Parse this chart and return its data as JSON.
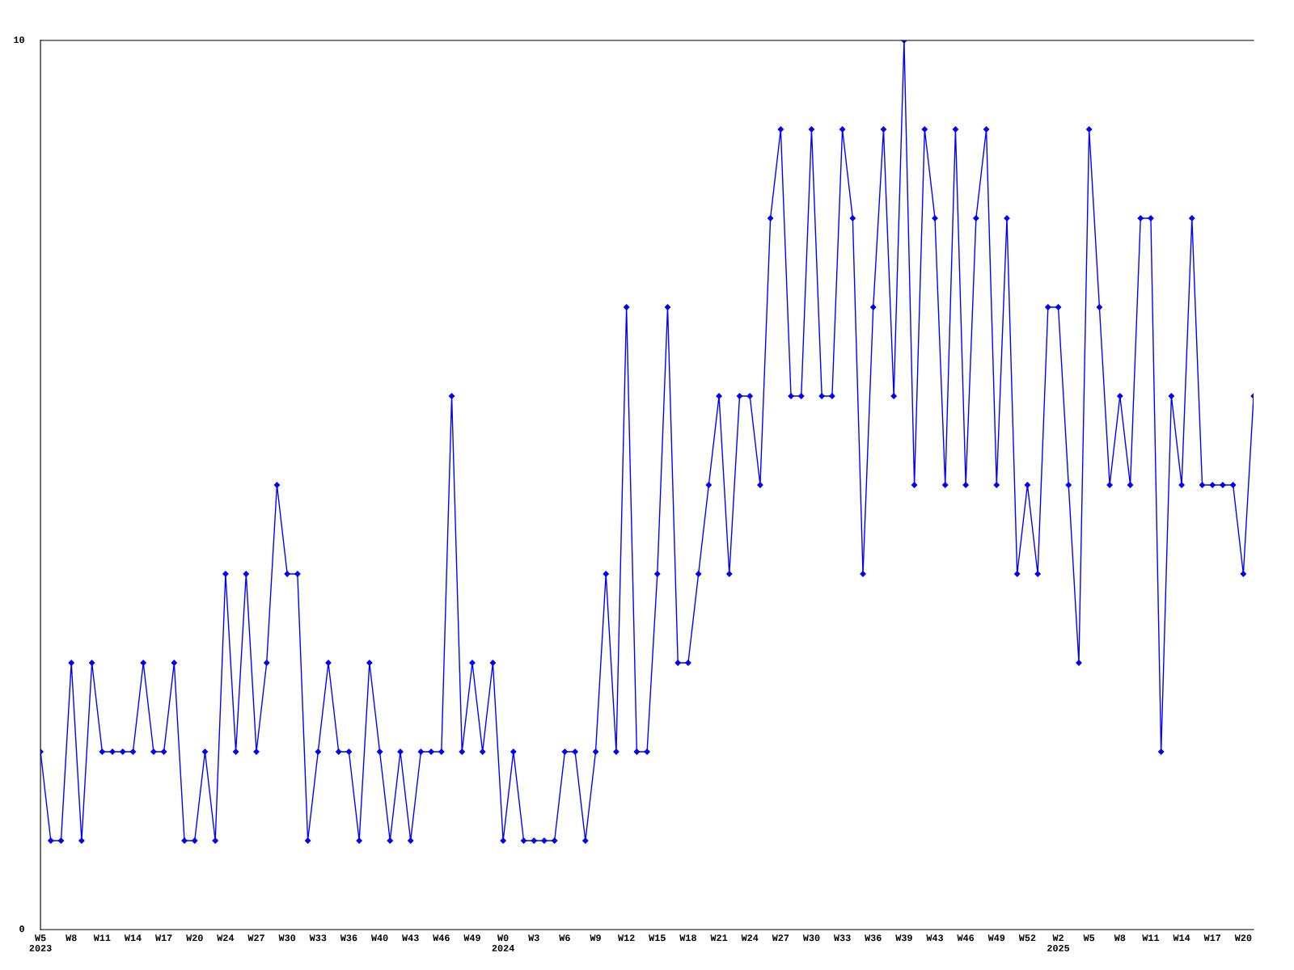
{
  "chart_data": {
    "type": "line",
    "categories": [
      "W5\n2023",
      null,
      null,
      "W8",
      null,
      null,
      "W11",
      null,
      null,
      "W14",
      null,
      null,
      "W17",
      null,
      null,
      "W20",
      null,
      null,
      "W24",
      null,
      null,
      "W27",
      null,
      null,
      "W30",
      null,
      null,
      "W33",
      null,
      null,
      "W36",
      null,
      null,
      "W40",
      null,
      null,
      "W43",
      null,
      null,
      "W46",
      null,
      null,
      "W49",
      null,
      null,
      "W0\n2024",
      null,
      null,
      "W3",
      null,
      null,
      "W6",
      null,
      null,
      "W9",
      null,
      null,
      "W12",
      null,
      null,
      "W15",
      null,
      null,
      "W18",
      null,
      null,
      "W21",
      null,
      null,
      "W24",
      null,
      null,
      "W27",
      null,
      null,
      "W30",
      null,
      null,
      "W33",
      null,
      null,
      "W36",
      null,
      null,
      "W39",
      null,
      null,
      "W43",
      null,
      null,
      "W46",
      null,
      null,
      "W49",
      null,
      null,
      "W52",
      null,
      null,
      "W2\n2025",
      null,
      null,
      "W5",
      null,
      null,
      "W8",
      null,
      null,
      "W11",
      null,
      null,
      "W14",
      null,
      null,
      "W17",
      null,
      null,
      "W20",
      null
    ],
    "series": [
      {
        "color": "#0000ff",
        "values": [
          2,
          1,
          1,
          3,
          1,
          3,
          2,
          2,
          2,
          2,
          3,
          2,
          2,
          3,
          1,
          1,
          2,
          1,
          4,
          2,
          4,
          2,
          3,
          5,
          4,
          4,
          1,
          2,
          3,
          2,
          2,
          1,
          3,
          2,
          1,
          2,
          1,
          2,
          2,
          2,
          6,
          2,
          3,
          2,
          3,
          1,
          2,
          1,
          1,
          1,
          1,
          2,
          2,
          1,
          2,
          4,
          2,
          7,
          2,
          2,
          4,
          7,
          3,
          3,
          4,
          5,
          6,
          4,
          6,
          6,
          5,
          8,
          9,
          6,
          6,
          9,
          6,
          6,
          9,
          8,
          4,
          7,
          9,
          6,
          10,
          5,
          9,
          8,
          5,
          9,
          5,
          8,
          9,
          5,
          8,
          4,
          5,
          4,
          7,
          7,
          5,
          3,
          9,
          7,
          5,
          6,
          5,
          8,
          8,
          2,
          6,
          5,
          8,
          5,
          5,
          5,
          5,
          4,
          6
        ]
      }
    ],
    "ylim": [
      0,
      10
    ],
    "yticks": [
      0,
      10
    ],
    "grid": false,
    "marker": "diamond",
    "line_style": "solid"
  }
}
